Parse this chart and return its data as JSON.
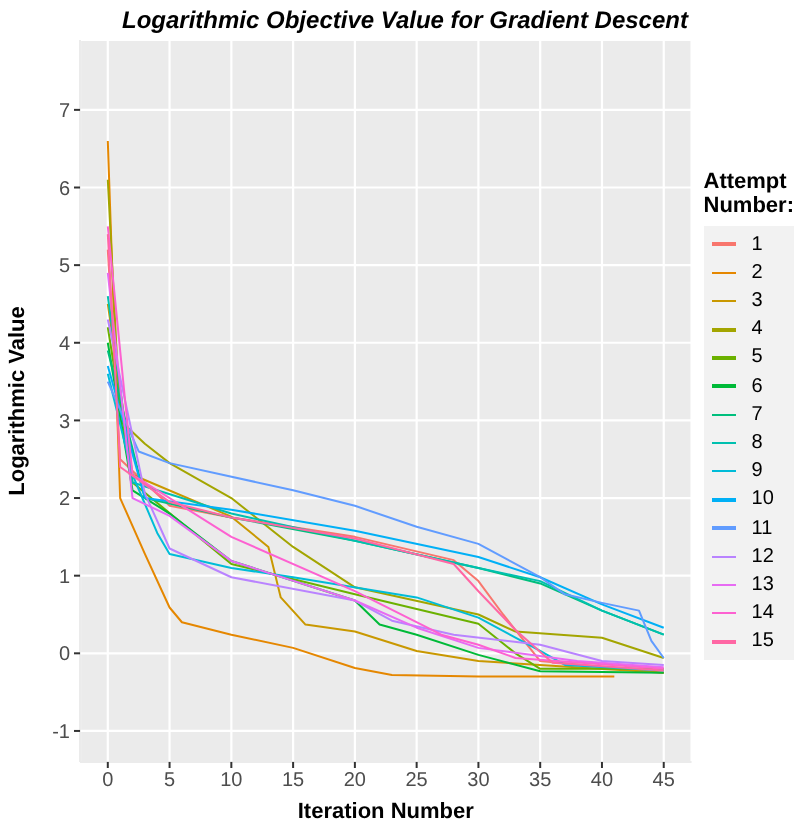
{
  "chart_data": {
    "type": "line",
    "title": "Logarithmic Objective Value for Gradient Descent",
    "xlabel": "Iteration Number",
    "ylabel": "Logarithmic  Value",
    "legend_title": "Attempt\nNumber:",
    "xlim": [
      -2.25,
      47.25
    ],
    "xticks": [
      0,
      5,
      10,
      15,
      20,
      25,
      30,
      35,
      40,
      45
    ],
    "ylim": [
      -1.4,
      7.9
    ],
    "yticks": [
      -1,
      0,
      1,
      2,
      3,
      4,
      5,
      6,
      7
    ],
    "grid": true,
    "legend": "right",
    "marker": "none",
    "line_style": "solid",
    "series": [
      {
        "name": "1",
        "color": "#F8766D",
        "x": [
          0,
          1,
          5,
          10,
          20,
          28,
          30,
          32,
          35,
          45
        ],
        "values": [
          5.2,
          2.5,
          1.9,
          1.75,
          1.5,
          1.2,
          0.93,
          0.5,
          -0.1,
          -0.25
        ]
      },
      {
        "name": "2",
        "color": "#E58700",
        "x": [
          0,
          1,
          3,
          5,
          6,
          10,
          15,
          20,
          23,
          30,
          41
        ],
        "values": [
          6.6,
          2.0,
          1.28,
          0.59,
          0.4,
          0.24,
          0.07,
          -0.19,
          -0.28,
          -0.3,
          -0.3
        ]
      },
      {
        "name": "3",
        "color": "#C99800",
        "x": [
          0,
          2,
          10,
          13,
          14,
          16,
          20,
          25,
          30,
          45
        ],
        "values": [
          4.5,
          2.3,
          1.76,
          1.37,
          0.72,
          0.37,
          0.28,
          0.03,
          -0.1,
          -0.25
        ]
      },
      {
        "name": "4",
        "color": "#A3A500",
        "x": [
          0,
          1,
          3,
          5,
          10,
          15,
          20,
          30,
          33,
          40,
          45
        ],
        "values": [
          6.1,
          3.0,
          2.7,
          2.45,
          2.0,
          1.37,
          0.85,
          0.5,
          0.28,
          0.2,
          -0.06
        ]
      },
      {
        "name": "5",
        "color": "#6BB100",
        "x": [
          0,
          2,
          10,
          20,
          30,
          33,
          35,
          45
        ],
        "values": [
          4.2,
          2.2,
          1.15,
          0.76,
          0.38,
          0.0,
          -0.2,
          -0.2
        ]
      },
      {
        "name": "6",
        "color": "#00BA38",
        "x": [
          0,
          2,
          5,
          10,
          20,
          22,
          25,
          30,
          35,
          45
        ],
        "values": [
          4.0,
          2.1,
          1.8,
          1.19,
          0.68,
          0.37,
          0.24,
          -0.02,
          -0.23,
          -0.25
        ]
      },
      {
        "name": "7",
        "color": "#00BF7D",
        "x": [
          0,
          3,
          10,
          20,
          30,
          35,
          40,
          45
        ],
        "values": [
          3.9,
          2.0,
          1.75,
          1.45,
          1.1,
          0.9,
          0.55,
          0.24
        ]
      },
      {
        "name": "8",
        "color": "#00C0AF",
        "x": [
          0,
          2,
          10,
          20,
          30,
          35,
          40,
          45
        ],
        "values": [
          4.6,
          2.2,
          1.8,
          1.45,
          1.1,
          0.93,
          0.55,
          0.24
        ]
      },
      {
        "name": "9",
        "color": "#00BCD8",
        "x": [
          0,
          2,
          4,
          5,
          10,
          15,
          25,
          30,
          35,
          37,
          45
        ],
        "values": [
          3.6,
          2.3,
          1.55,
          1.28,
          1.1,
          0.98,
          0.72,
          0.46,
          0.03,
          -0.15,
          -0.22
        ]
      },
      {
        "name": "10",
        "color": "#00B0F6",
        "x": [
          0,
          3,
          10,
          20,
          30,
          35,
          40,
          45
        ],
        "values": [
          3.7,
          2.0,
          1.85,
          1.58,
          1.24,
          0.98,
          0.63,
          0.33
        ]
      },
      {
        "name": "11",
        "color": "#619CFF",
        "x": [
          0,
          2.5,
          5,
          15,
          20,
          25,
          30,
          35,
          37,
          40,
          43,
          44,
          45
        ],
        "values": [
          3.5,
          2.6,
          2.45,
          2.1,
          1.9,
          1.63,
          1.41,
          0.98,
          0.76,
          0.65,
          0.55,
          0.16,
          -0.06
        ]
      },
      {
        "name": "12",
        "color": "#B983FF",
        "x": [
          0,
          3,
          5,
          10,
          20,
          23,
          28,
          35,
          40,
          45
        ],
        "values": [
          4.3,
          2.06,
          1.35,
          0.98,
          0.68,
          0.42,
          0.24,
          0.11,
          -0.1,
          -0.15
        ]
      },
      {
        "name": "13",
        "color": "#E76BF3",
        "x": [
          0,
          2,
          5,
          10,
          20,
          25,
          30,
          38,
          45
        ],
        "values": [
          4.9,
          2.0,
          1.77,
          1.19,
          0.68,
          0.33,
          0.07,
          -0.1,
          -0.18
        ]
      },
      {
        "name": "14",
        "color": "#FD61D1",
        "x": [
          0,
          2,
          10,
          20,
          27,
          30,
          33,
          45
        ],
        "values": [
          5.5,
          2.3,
          1.5,
          0.8,
          0.24,
          0.11,
          -0.06,
          -0.2
        ]
      },
      {
        "name": "15",
        "color": "#FF67A4",
        "x": [
          0,
          1,
          5,
          10,
          20,
          28,
          30,
          33,
          36,
          45
        ],
        "values": [
          5.4,
          2.4,
          1.95,
          1.75,
          1.48,
          1.15,
          0.8,
          0.3,
          -0.12,
          -0.22
        ]
      }
    ]
  }
}
